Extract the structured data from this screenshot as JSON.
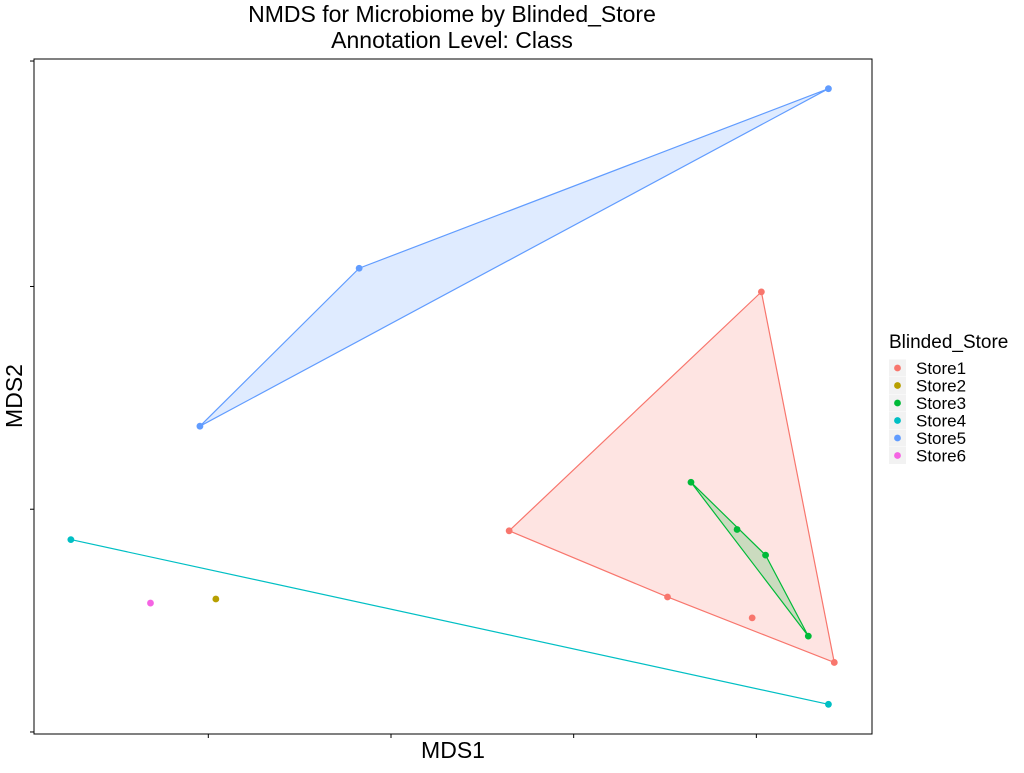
{
  "chart_data": {
    "type": "scatter",
    "title": "NMDS for Microbiome by Blinded_Store",
    "subtitle": "Annotation Level: Class",
    "xlabel": "MDS1",
    "ylabel": "MDS2",
    "xlim": [
      0,
      100
    ],
    "ylim": [
      0,
      100
    ],
    "grid": false,
    "legend_title": "Blinded_Store",
    "legend_position": "right",
    "hulls": true,
    "series": [
      {
        "name": "Store1",
        "color": "#F8766D",
        "points": [
          [
            56.7,
            30.1
          ],
          [
            86.8,
            65.5
          ],
          [
            95.5,
            10.6
          ],
          [
            75.6,
            20.3
          ],
          [
            85.7,
            17.2
          ]
        ]
      },
      {
        "name": "Store2",
        "color": "#B79F00",
        "points": [
          [
            21.7,
            20.0
          ]
        ]
      },
      {
        "name": "Store3",
        "color": "#00BA38",
        "points": [
          [
            78.4,
            37.3
          ],
          [
            83.9,
            30.3
          ],
          [
            87.3,
            26.5
          ],
          [
            92.4,
            14.5
          ]
        ]
      },
      {
        "name": "Store4",
        "color": "#00BFC4",
        "points": [
          [
            4.4,
            28.8
          ],
          [
            94.8,
            4.4
          ]
        ]
      },
      {
        "name": "Store5",
        "color": "#619CFF",
        "points": [
          [
            94.8,
            95.6
          ],
          [
            38.8,
            69.0
          ],
          [
            19.8,
            45.6
          ]
        ]
      },
      {
        "name": "Store6",
        "color": "#F564E3",
        "points": [
          [
            13.9,
            19.4
          ]
        ]
      }
    ]
  }
}
